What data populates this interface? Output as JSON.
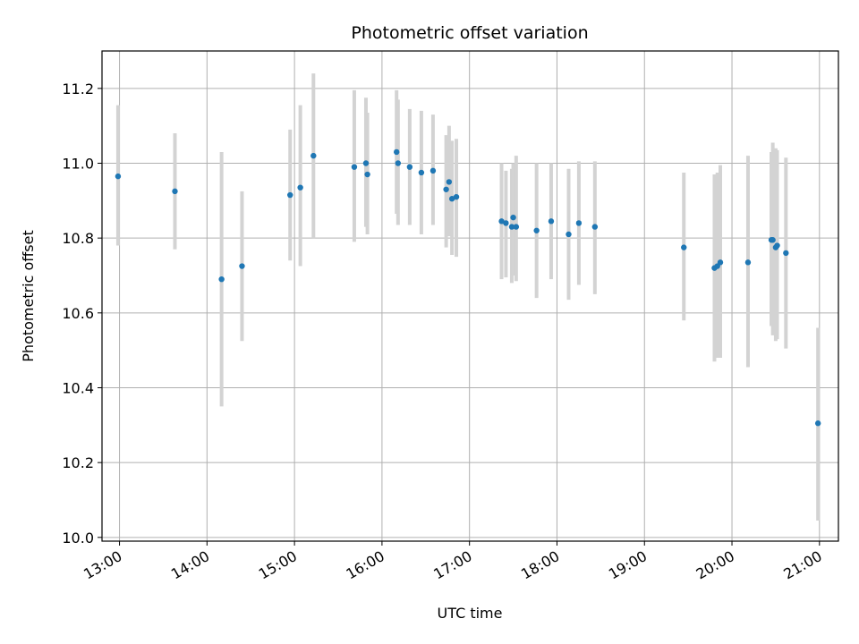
{
  "chart_data": {
    "type": "scatter",
    "title": "Photometric offset variation",
    "xlabel": "UTC time",
    "ylabel": "Photometric offset",
    "x_ticks": [
      "13:00",
      "14:00",
      "15:00",
      "16:00",
      "17:00",
      "18:00",
      "19:00",
      "20:00",
      "21:00"
    ],
    "y_ticks": [
      "10.0",
      "10.2",
      "10.4",
      "10.6",
      "10.8",
      "11.0",
      "11.2"
    ],
    "xlim": [
      "12:48",
      "21:13"
    ],
    "ylim": [
      9.99,
      11.3
    ],
    "grid": true,
    "colors": {
      "point": "#1f77b4",
      "errorbar": "#d3d3d3",
      "grid": "#b0b0b0"
    },
    "series": [
      {
        "points": [
          {
            "x": "12:59",
            "y": 10.965,
            "lo": 10.78,
            "hi": 11.155
          },
          {
            "x": "13:38",
            "y": 10.925,
            "lo": 10.77,
            "hi": 11.08
          },
          {
            "x": "14:10",
            "y": 10.69,
            "lo": 10.35,
            "hi": 11.03
          },
          {
            "x": "14:24",
            "y": 10.725,
            "lo": 10.525,
            "hi": 10.925
          },
          {
            "x": "14:57",
            "y": 10.915,
            "lo": 10.74,
            "hi": 11.09
          },
          {
            "x": "15:04",
            "y": 10.935,
            "lo": 10.725,
            "hi": 11.155
          },
          {
            "x": "15:13",
            "y": 11.02,
            "lo": 10.8,
            "hi": 11.24
          },
          {
            "x": "15:41",
            "y": 10.99,
            "lo": 10.79,
            "hi": 11.195
          },
          {
            "x": "15:49",
            "y": 11.0,
            "lo": 10.83,
            "hi": 11.175
          },
          {
            "x": "15:50",
            "y": 10.97,
            "lo": 10.81,
            "hi": 11.135
          },
          {
            "x": "16:10",
            "y": 11.03,
            "lo": 10.865,
            "hi": 11.195
          },
          {
            "x": "16:11",
            "y": 11.0,
            "lo": 10.835,
            "hi": 11.17
          },
          {
            "x": "16:19",
            "y": 10.99,
            "lo": 10.835,
            "hi": 11.145
          },
          {
            "x": "16:27",
            "y": 10.975,
            "lo": 10.81,
            "hi": 11.14
          },
          {
            "x": "16:35",
            "y": 10.98,
            "lo": 10.835,
            "hi": 11.13
          },
          {
            "x": "16:44",
            "y": 10.93,
            "lo": 10.775,
            "hi": 11.075
          },
          {
            "x": "16:46",
            "y": 10.95,
            "lo": 10.805,
            "hi": 11.1
          },
          {
            "x": "16:48",
            "y": 10.905,
            "lo": 10.755,
            "hi": 11.06
          },
          {
            "x": "16:51",
            "y": 10.91,
            "lo": 10.75,
            "hi": 11.065
          },
          {
            "x": "17:22",
            "y": 10.845,
            "lo": 10.69,
            "hi": 11.0
          },
          {
            "x": "17:25",
            "y": 10.84,
            "lo": 10.695,
            "hi": 10.98
          },
          {
            "x": "17:29",
            "y": 10.83,
            "lo": 10.68,
            "hi": 10.985
          },
          {
            "x": "17:30",
            "y": 10.855,
            "lo": 10.7,
            "hi": 11.0
          },
          {
            "x": "17:32",
            "y": 10.83,
            "lo": 10.685,
            "hi": 11.02
          },
          {
            "x": "17:46",
            "y": 10.82,
            "lo": 10.64,
            "hi": 11.0
          },
          {
            "x": "17:56",
            "y": 10.845,
            "lo": 10.69,
            "hi": 11.0
          },
          {
            "x": "18:08",
            "y": 10.81,
            "lo": 10.635,
            "hi": 10.985
          },
          {
            "x": "18:15",
            "y": 10.84,
            "lo": 10.675,
            "hi": 11.005
          },
          {
            "x": "18:26",
            "y": 10.83,
            "lo": 10.65,
            "hi": 11.005
          },
          {
            "x": "19:27",
            "y": 10.775,
            "lo": 10.58,
            "hi": 10.975
          },
          {
            "x": "19:48",
            "y": 10.72,
            "lo": 10.47,
            "hi": 10.97
          },
          {
            "x": "19:50",
            "y": 10.725,
            "lo": 10.48,
            "hi": 10.975
          },
          {
            "x": "19:52",
            "y": 10.735,
            "lo": 10.48,
            "hi": 10.995
          },
          {
            "x": "20:11",
            "y": 10.735,
            "lo": 10.455,
            "hi": 11.02
          },
          {
            "x": "20:27",
            "y": 10.795,
            "lo": 10.565,
            "hi": 11.03
          },
          {
            "x": "20:28",
            "y": 10.795,
            "lo": 10.54,
            "hi": 11.055
          },
          {
            "x": "20:30",
            "y": 10.775,
            "lo": 10.525,
            "hi": 11.04
          },
          {
            "x": "20:31",
            "y": 10.78,
            "lo": 10.53,
            "hi": 11.035
          },
          {
            "x": "20:37",
            "y": 10.76,
            "lo": 10.505,
            "hi": 11.015
          },
          {
            "x": "20:59",
            "y": 10.305,
            "lo": 10.045,
            "hi": 10.56
          }
        ]
      }
    ]
  }
}
